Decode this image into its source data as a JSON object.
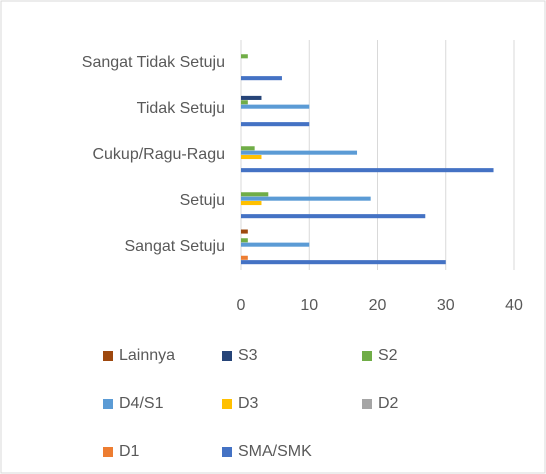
{
  "chart_data": {
    "type": "bar",
    "orientation": "horizontal",
    "categories": [
      "Sangat Setuju",
      "Setuju",
      "Cukup/Ragu-Ragu",
      "Tidak Setuju",
      "Sangat Tidak Setuju"
    ],
    "series": [
      {
        "name": "Lainnya",
        "color": "#9e480e",
        "values": [
          1,
          0,
          0,
          0,
          0
        ]
      },
      {
        "name": "S3",
        "color": "#264478",
        "values": [
          0,
          0,
          0,
          3,
          0
        ]
      },
      {
        "name": "S2",
        "color": "#70ad47",
        "values": [
          1,
          4,
          2,
          1,
          1
        ]
      },
      {
        "name": "D4/S1",
        "color": "#5b9bd5",
        "values": [
          10,
          19,
          17,
          10,
          0
        ]
      },
      {
        "name": "D3",
        "color": "#ffc000",
        "values": [
          0,
          3,
          3,
          0,
          0
        ]
      },
      {
        "name": "D2",
        "color": "#a5a5a5",
        "values": [
          0,
          0,
          0,
          0,
          0
        ]
      },
      {
        "name": "D1",
        "color": "#ed7d31",
        "values": [
          1,
          0,
          0,
          0,
          0
        ]
      },
      {
        "name": "SMA/SMK",
        "color": "#4472c4",
        "values": [
          30,
          27,
          37,
          10,
          6
        ]
      }
    ],
    "xlim": [
      0,
      40
    ],
    "xticks": [
      0,
      10,
      20,
      30,
      40
    ],
    "grid": true,
    "legend": "bottom"
  }
}
